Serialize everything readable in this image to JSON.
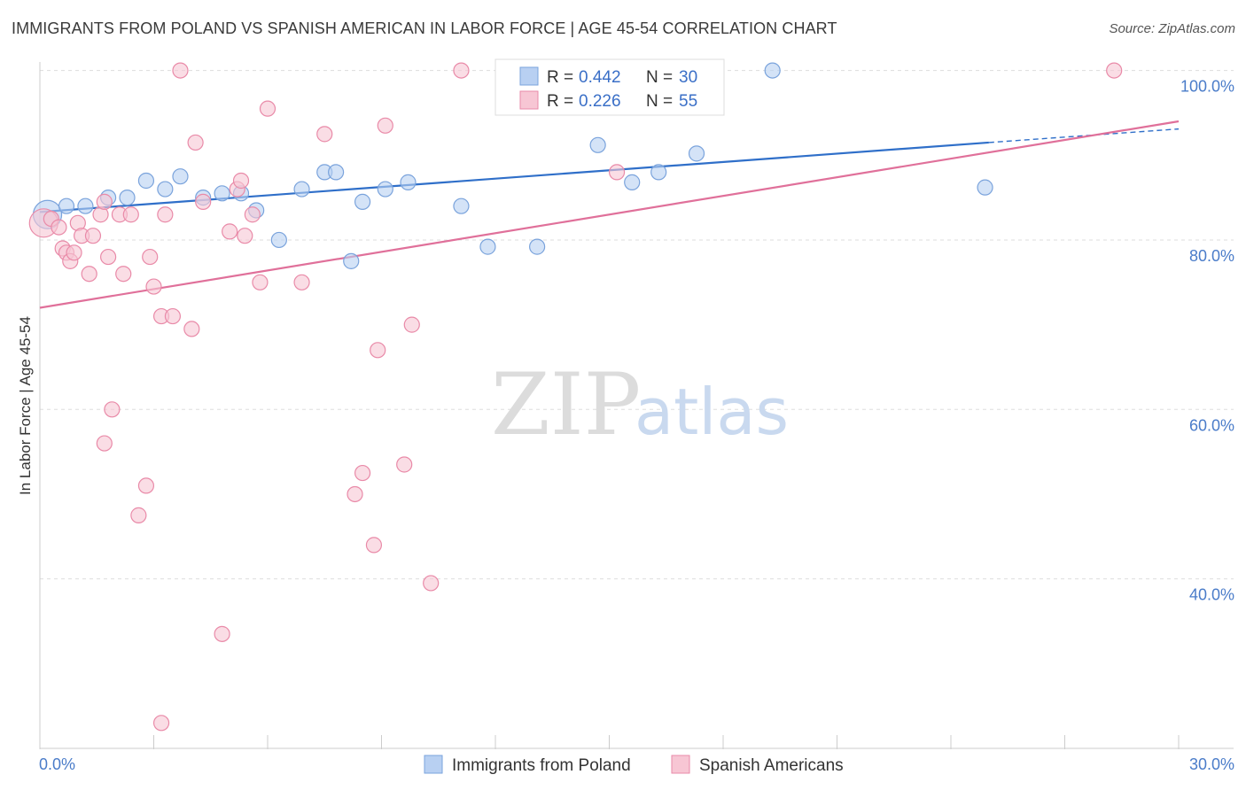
{
  "title": "IMMIGRANTS FROM POLAND VS SPANISH AMERICAN IN LABOR FORCE | AGE 45-54 CORRELATION CHART",
  "source": "Source: ZipAtlas.com",
  "watermark": {
    "zip": "ZIP",
    "atlas": "atlas"
  },
  "colors": {
    "blue_fill": "#b8d0f2",
    "blue_stroke": "#7aa3dc",
    "blue_line": "#2f6fc9",
    "pink_fill": "#f7c6d4",
    "pink_stroke": "#e98aa8",
    "pink_line": "#e0709a",
    "grid": "#dddddd",
    "tick_text": "#4a7cc9"
  },
  "legend": {
    "rows": [
      {
        "r_label": "R =",
        "r_value": "0.442",
        "n_label": "N =",
        "n_value": "30",
        "series": "blue"
      },
      {
        "r_label": "R =",
        "r_value": "0.226",
        "n_label": "N =",
        "n_value": "55",
        "series": "pink"
      }
    ]
  },
  "chart_data": {
    "type": "scatter",
    "title": "IMMIGRANTS FROM POLAND VS SPANISH AMERICAN IN LABOR FORCE | AGE 45-54 CORRELATION CHART",
    "xlabel": "",
    "ylabel": "In Labor Force | Age 45-54",
    "xlim": [
      0,
      30
    ],
    "ylim": [
      20,
      102
    ],
    "x_tick_labels": [
      {
        "value": 0,
        "label": "0.0%"
      },
      {
        "value": 30,
        "label": "30.0%"
      }
    ],
    "y_tick_labels": [
      {
        "value": 100,
        "label": "100.0%"
      },
      {
        "value": 80,
        "label": "80.0%"
      },
      {
        "value": 60,
        "label": "60.0%"
      },
      {
        "value": 40,
        "label": "40.0%"
      }
    ],
    "grid": true,
    "legend_placement": "top-center",
    "series": [
      {
        "name": "Immigrants from Poland",
        "color": "blue",
        "points": [
          [
            0.2,
            83.0,
            "large"
          ],
          [
            0.7,
            84.0
          ],
          [
            1.2,
            84.0
          ],
          [
            1.8,
            85.0
          ],
          [
            2.3,
            85.0
          ],
          [
            2.8,
            87.0
          ],
          [
            3.3,
            86.0
          ],
          [
            3.7,
            87.5
          ],
          [
            4.3,
            85.0
          ],
          [
            4.8,
            85.5
          ],
          [
            5.3,
            85.5
          ],
          [
            5.7,
            83.5
          ],
          [
            6.3,
            80.0
          ],
          [
            6.9,
            86.0
          ],
          [
            7.5,
            88.0
          ],
          [
            7.8,
            88.0
          ],
          [
            8.2,
            77.5
          ],
          [
            8.5,
            84.5
          ],
          [
            9.1,
            86.0
          ],
          [
            9.7,
            86.8
          ],
          [
            11.1,
            84.0
          ],
          [
            11.8,
            79.2
          ],
          [
            13.1,
            79.2
          ],
          [
            14.7,
            91.2
          ],
          [
            15.6,
            86.8
          ],
          [
            16.3,
            88.0
          ],
          [
            17.3,
            90.2
          ],
          [
            17.7,
            100.0
          ],
          [
            19.3,
            100.0
          ],
          [
            24.9,
            86.2
          ]
        ],
        "trend": {
          "x": [
            0,
            25
          ],
          "y": [
            83.3,
            91.5
          ],
          "dashed_extension_x": [
            25,
            30
          ],
          "dashed_extension_y": [
            91.5,
            93.1
          ]
        }
      },
      {
        "name": "Spanish Americans",
        "color": "pink",
        "points": [
          [
            0.1,
            82.0,
            "large"
          ],
          [
            0.3,
            82.5
          ],
          [
            0.5,
            81.5
          ],
          [
            0.6,
            79.0
          ],
          [
            0.7,
            78.5
          ],
          [
            0.8,
            77.5
          ],
          [
            0.9,
            78.5
          ],
          [
            1.0,
            82.0
          ],
          [
            1.1,
            80.5
          ],
          [
            1.3,
            76.0
          ],
          [
            1.4,
            80.5
          ],
          [
            1.6,
            83.0
          ],
          [
            1.7,
            84.5
          ],
          [
            1.8,
            78.0
          ],
          [
            1.9,
            60.0
          ],
          [
            1.7,
            56.0
          ],
          [
            2.1,
            83.0
          ],
          [
            2.2,
            76.0
          ],
          [
            2.4,
            83.0
          ],
          [
            2.6,
            47.5
          ],
          [
            2.8,
            51.0
          ],
          [
            2.9,
            78.0
          ],
          [
            3.0,
            74.5
          ],
          [
            3.2,
            71.0
          ],
          [
            3.2,
            23.0
          ],
          [
            3.3,
            83.0
          ],
          [
            3.5,
            71.0
          ],
          [
            3.7,
            100.0
          ],
          [
            4.0,
            69.5
          ],
          [
            4.1,
            91.5
          ],
          [
            4.3,
            84.5
          ],
          [
            4.8,
            33.5
          ],
          [
            5.0,
            81.0
          ],
          [
            5.2,
            86.0
          ],
          [
            5.3,
            87.0
          ],
          [
            5.4,
            80.5
          ],
          [
            5.6,
            83.0
          ],
          [
            5.8,
            75.0
          ],
          [
            6.0,
            95.5
          ],
          [
            6.9,
            75.0
          ],
          [
            7.5,
            92.5
          ],
          [
            8.3,
            50.0
          ],
          [
            8.5,
            52.5
          ],
          [
            8.8,
            44.0
          ],
          [
            8.9,
            67.0
          ],
          [
            9.1,
            93.5
          ],
          [
            9.6,
            53.5
          ],
          [
            9.8,
            70.0
          ],
          [
            10.3,
            39.5
          ],
          [
            11.1,
            100.0
          ],
          [
            13.4,
            100.0
          ],
          [
            15.2,
            88.0
          ],
          [
            17.6,
            100.0
          ],
          [
            17.7,
            100.0
          ],
          [
            28.3,
            100.0
          ]
        ],
        "trend": {
          "x": [
            0,
            30
          ],
          "y": [
            72.0,
            94.0
          ]
        }
      }
    ],
    "bottom_legend": [
      "Immigrants from Poland",
      "Spanish Americans"
    ]
  }
}
